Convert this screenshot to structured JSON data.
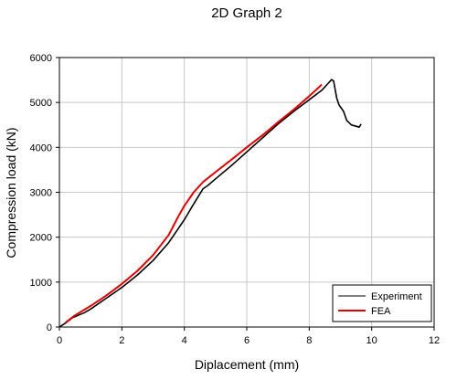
{
  "chart_data": {
    "type": "line",
    "title": "2D Graph 2",
    "xlabel": "Diplacement (mm)",
    "ylabel": "Compression load (kN)",
    "xlim": [
      0,
      12
    ],
    "ylim": [
      0,
      6000
    ],
    "x_ticks": [
      0,
      2,
      4,
      6,
      8,
      10,
      12
    ],
    "y_ticks": [
      0,
      1000,
      2000,
      3000,
      4000,
      5000,
      6000
    ],
    "grid": true,
    "legend_position": "bottom-right",
    "series": [
      {
        "name": "Experiment",
        "color": "#000000",
        "points": [
          [
            0.0,
            0
          ],
          [
            0.2,
            90
          ],
          [
            0.4,
            200
          ],
          [
            0.6,
            260
          ],
          [
            0.8,
            320
          ],
          [
            1.0,
            400
          ],
          [
            1.5,
            640
          ],
          [
            2.0,
            880
          ],
          [
            2.5,
            1160
          ],
          [
            3.0,
            1480
          ],
          [
            3.5,
            1880
          ],
          [
            4.0,
            2390
          ],
          [
            4.3,
            2740
          ],
          [
            4.6,
            3080
          ],
          [
            4.75,
            3150
          ],
          [
            5.0,
            3300
          ],
          [
            5.5,
            3590
          ],
          [
            6.0,
            3900
          ],
          [
            6.5,
            4210
          ],
          [
            7.0,
            4520
          ],
          [
            7.5,
            4800
          ],
          [
            8.0,
            5060
          ],
          [
            8.4,
            5270
          ],
          [
            8.6,
            5420
          ],
          [
            8.72,
            5510
          ],
          [
            8.78,
            5480
          ],
          [
            8.82,
            5320
          ],
          [
            8.88,
            5100
          ],
          [
            8.95,
            4950
          ],
          [
            9.1,
            4800
          ],
          [
            9.2,
            4600
          ],
          [
            9.35,
            4500
          ],
          [
            9.5,
            4470
          ],
          [
            9.6,
            4450
          ],
          [
            9.66,
            4520
          ]
        ]
      },
      {
        "name": "FEA",
        "color": "#e00000",
        "points": [
          [
            0.2,
            100
          ],
          [
            0.5,
            260
          ],
          [
            1.0,
            470
          ],
          [
            1.5,
            700
          ],
          [
            2.0,
            960
          ],
          [
            2.5,
            1250
          ],
          [
            3.0,
            1600
          ],
          [
            3.5,
            2050
          ],
          [
            3.8,
            2450
          ],
          [
            4.0,
            2700
          ],
          [
            4.3,
            3000
          ],
          [
            4.6,
            3230
          ],
          [
            5.0,
            3450
          ],
          [
            5.5,
            3720
          ],
          [
            6.0,
            4000
          ],
          [
            6.5,
            4270
          ],
          [
            7.0,
            4560
          ],
          [
            7.5,
            4840
          ],
          [
            8.0,
            5140
          ],
          [
            8.3,
            5330
          ],
          [
            8.4,
            5400
          ]
        ]
      }
    ]
  }
}
